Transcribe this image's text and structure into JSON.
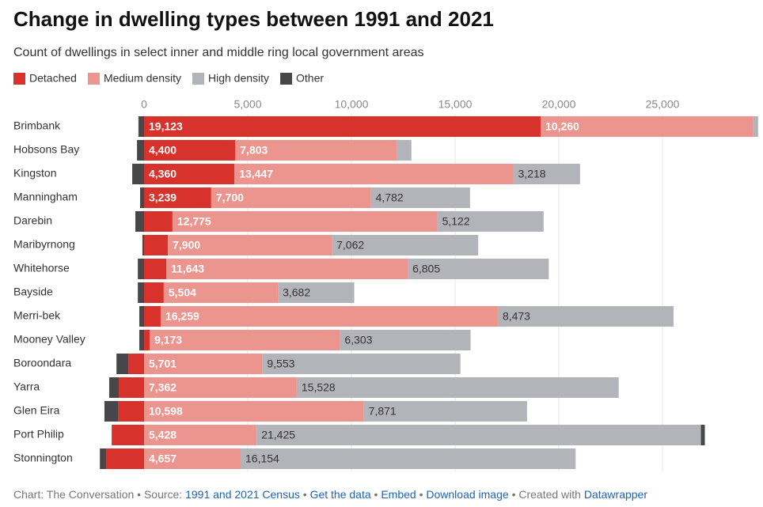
{
  "chart_data": {
    "type": "diverging-stacked-bar",
    "title": "Change in dwelling types between 1991 and 2021",
    "subtitle": "Count of dwellings in select inner and middle ring local government areas",
    "categories": [
      "Brimbank",
      "Hobsons Bay",
      "Kingston",
      "Manningham",
      "Darebin",
      "Maribyrnong",
      "Whitehorse",
      "Bayside",
      "Merri-bek",
      "Mooney Valley",
      "Boroondara",
      "Yarra",
      "Glen Eira",
      "Port Philip",
      "Stonnington"
    ],
    "series": [
      {
        "name": "Detached",
        "color": "#d7322b",
        "label_color": "#ffffff",
        "values": [
          19123,
          4400,
          4360,
          3239,
          1370,
          1150,
          1070,
          950,
          800,
          270,
          -760,
          -1220,
          -1260,
          -1560,
          -1830
        ],
        "value_labels": [
          "19,123",
          "4,400",
          "4,360",
          "3,239",
          null,
          null,
          null,
          null,
          null,
          null,
          null,
          null,
          null,
          null,
          null
        ]
      },
      {
        "name": "Medium density",
        "color": "#ec958e",
        "label_color": "#ffffff",
        "values": [
          10260,
          7803,
          13447,
          7700,
          12775,
          7900,
          11643,
          5504,
          16259,
          9173,
          5701,
          7362,
          10598,
          5428,
          4657
        ],
        "value_labels": [
          "10,260",
          "7,803",
          "13,447",
          "7,700",
          "12,775",
          "7,900",
          "11,643",
          "5,504",
          "16,259",
          "9,173",
          "5,701",
          "7,362",
          "10,598",
          "5,428",
          "4,657"
        ]
      },
      {
        "name": "High density",
        "color": "#b3b3ba",
        "label_color": "#333333",
        "values": [
          230,
          690,
          3218,
          4782,
          5122,
          7062,
          6805,
          3682,
          8473,
          6303,
          9553,
          15528,
          7871,
          21425,
          16154
        ],
        "value_labels": [
          null,
          null,
          "3,218",
          "4,782",
          "5,122",
          "7,062",
          "6,805",
          "3,682",
          "8,473",
          "6,303",
          "9,553",
          "15,528",
          "7,871",
          "21,425",
          "16,154"
        ]
      },
      {
        "name": "Other",
        "color": "#474749",
        "label_color": "#ffffff",
        "values": [
          -270,
          -340,
          -570,
          -190,
          -420,
          -80,
          -300,
          -300,
          -230,
          -230,
          -570,
          -460,
          -650,
          190,
          -300
        ],
        "value_labels": [
          null,
          null,
          null,
          null,
          null,
          null,
          null,
          null,
          null,
          null,
          null,
          null,
          null,
          null,
          null
        ]
      }
    ],
    "xlim": [
      -2000,
      29500
    ],
    "xticks": [
      0,
      {
        "value": 5000,
        "label": "5,000"
      },
      {
        "value": 10000,
        "label": "10,000"
      },
      {
        "value": 15000,
        "label": "15,000"
      },
      {
        "value": 20000,
        "label": "20,000"
      },
      {
        "value": 25000,
        "label": "25,000"
      }
    ],
    "grid": true,
    "legend": "top-left"
  },
  "footer": {
    "separator": "•",
    "credit": "Chart: The Conversation",
    "source_label": "Source:",
    "source": "1991 and 2021 Census",
    "links": [
      "Get the data",
      "Embed",
      "Download image"
    ],
    "created_label": "Created with",
    "tool": "Datawrapper"
  }
}
